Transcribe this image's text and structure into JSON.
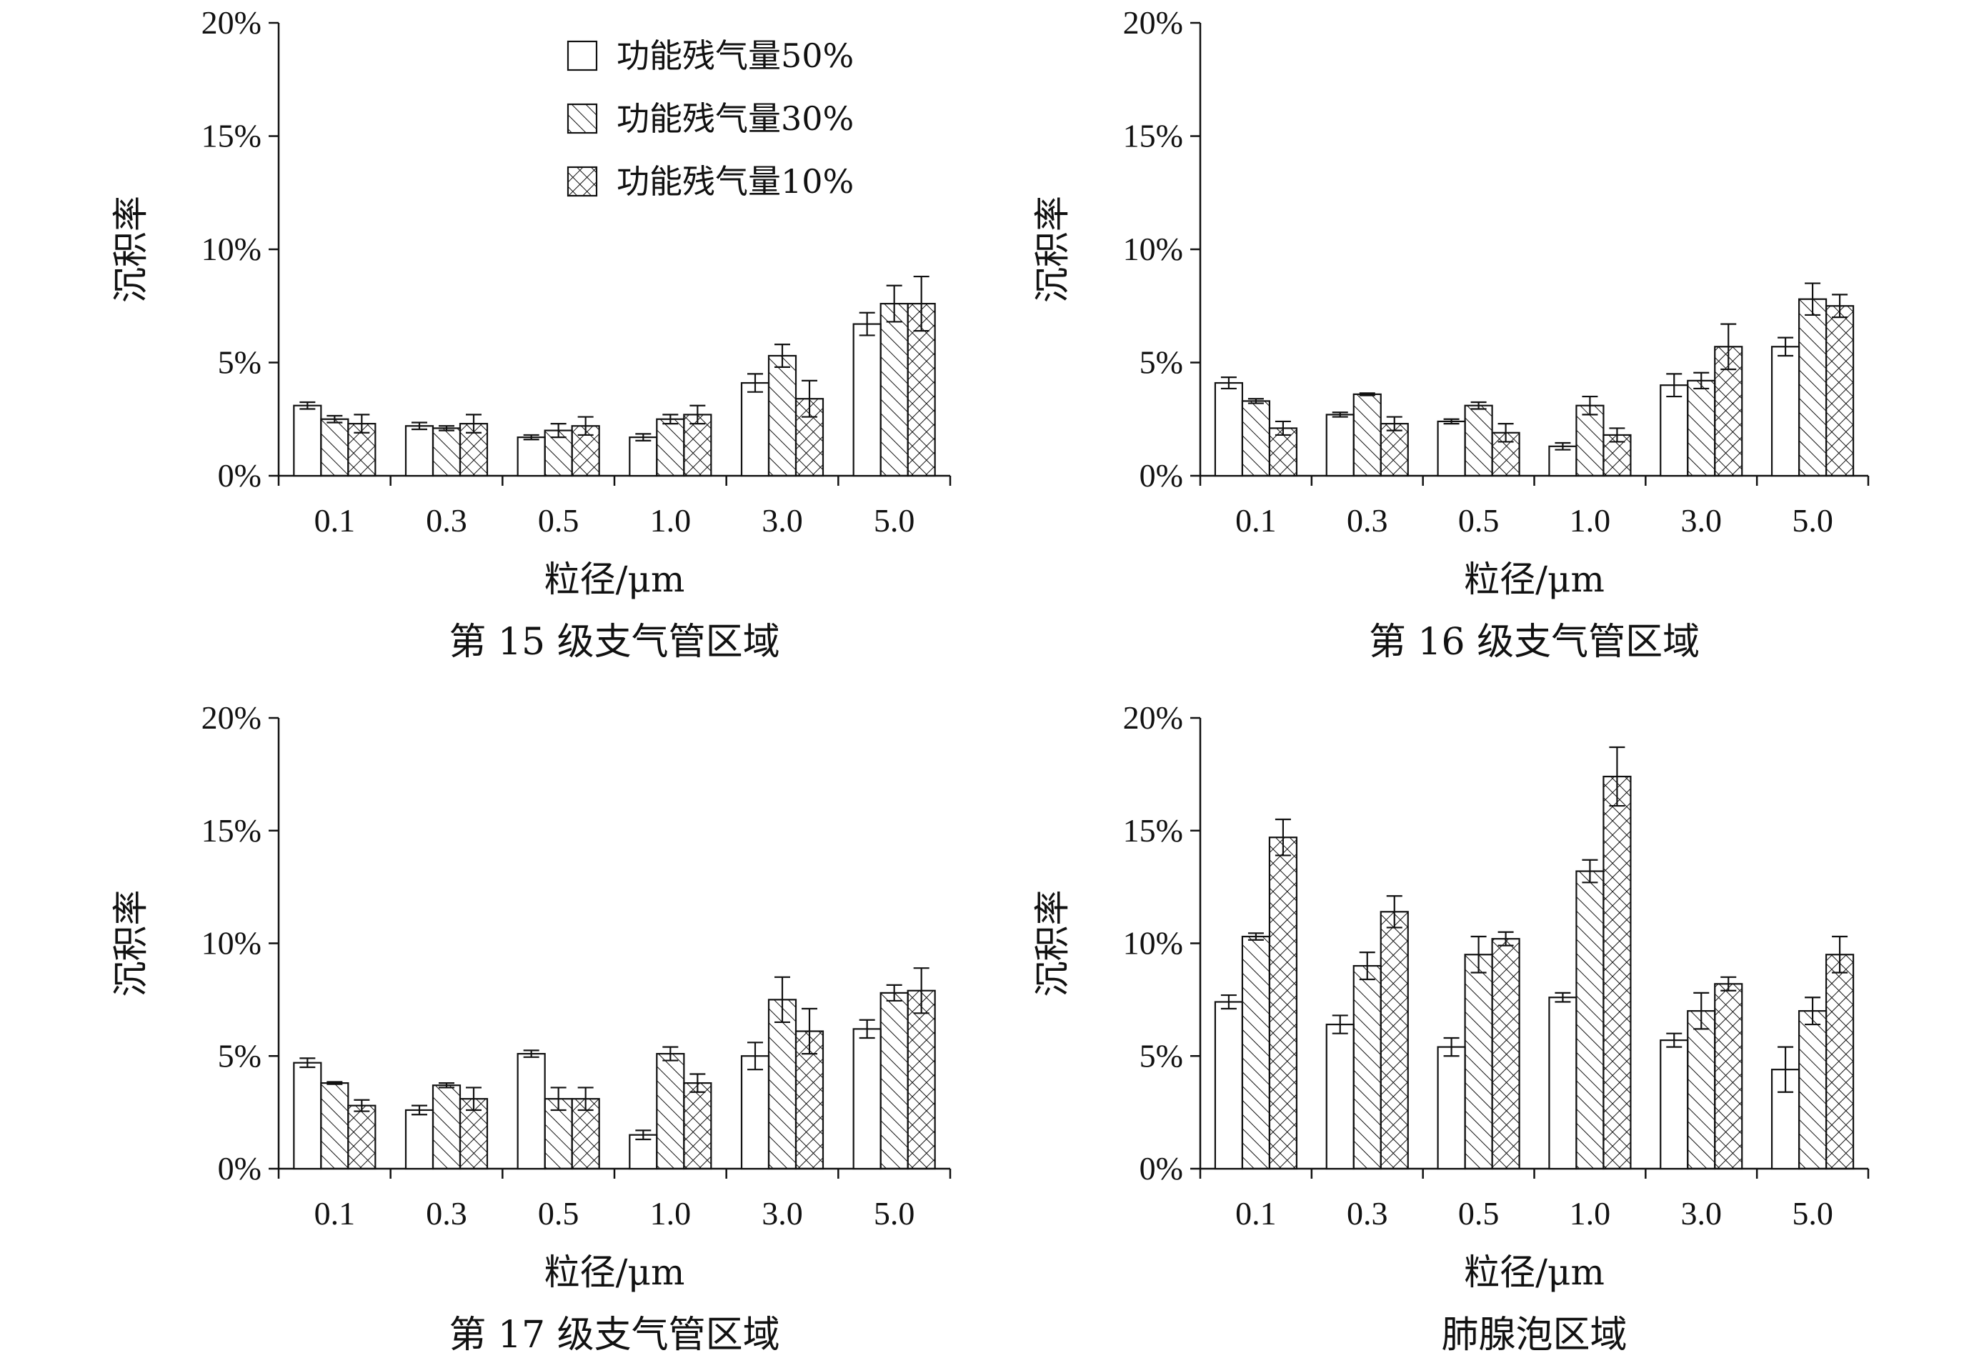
{
  "legend": [
    "功能残气量50%",
    "功能残气量30%",
    "功能残气量10%"
  ],
  "chart_data": [
    {
      "type": "bar",
      "caption": "第 15 级支气管区域",
      "xlabel": "粒径/μm",
      "ylabel": "沉积率",
      "ylim": [
        0,
        20
      ],
      "yticks": [
        "0%",
        "5%",
        "10%",
        "15%",
        "20%"
      ],
      "categories": [
        "0.1",
        "0.3",
        "0.5",
        "1.0",
        "3.0",
        "5.0"
      ],
      "legend_visible": true,
      "series": [
        {
          "name": "功能残气量50%",
          "values": [
            3.1,
            2.2,
            1.7,
            1.7,
            4.1,
            6.7
          ],
          "errors": [
            0.15,
            0.15,
            0.1,
            0.15,
            0.4,
            0.5
          ]
        },
        {
          "name": "功能残气量30%",
          "values": [
            2.5,
            2.1,
            2.0,
            2.5,
            5.3,
            7.6
          ],
          "errors": [
            0.15,
            0.1,
            0.3,
            0.2,
            0.5,
            0.8
          ]
        },
        {
          "name": "功能残气量10%",
          "values": [
            2.3,
            2.3,
            2.2,
            2.7,
            3.4,
            7.6
          ],
          "errors": [
            0.4,
            0.4,
            0.4,
            0.4,
            0.8,
            1.2
          ]
        }
      ]
    },
    {
      "type": "bar",
      "caption": "第 16 级支气管区域",
      "xlabel": "粒径/μm",
      "ylabel": "沉积率",
      "ylim": [
        0,
        20
      ],
      "yticks": [
        "0%",
        "5%",
        "10%",
        "15%",
        "20%"
      ],
      "categories": [
        "0.1",
        "0.3",
        "0.5",
        "1.0",
        "3.0",
        "5.0"
      ],
      "legend_visible": false,
      "series": [
        {
          "name": "功能残气量50%",
          "values": [
            4.1,
            2.7,
            2.4,
            1.3,
            4.0,
            5.7
          ],
          "errors": [
            0.25,
            0.1,
            0.1,
            0.15,
            0.5,
            0.4
          ]
        },
        {
          "name": "功能残气量30%",
          "values": [
            3.3,
            3.6,
            3.1,
            3.1,
            4.2,
            7.8
          ],
          "errors": [
            0.1,
            0.05,
            0.15,
            0.4,
            0.35,
            0.7
          ]
        },
        {
          "name": "功能残气量10%",
          "values": [
            2.1,
            2.3,
            1.9,
            1.8,
            5.7,
            7.5
          ],
          "errors": [
            0.3,
            0.3,
            0.4,
            0.3,
            1.0,
            0.5
          ]
        }
      ]
    },
    {
      "type": "bar",
      "caption": "第 17 级支气管区域",
      "xlabel": "粒径/μm",
      "ylabel": "沉积率",
      "ylim": [
        0,
        20
      ],
      "yticks": [
        "0%",
        "5%",
        "10%",
        "15%",
        "20%"
      ],
      "categories": [
        "0.1",
        "0.3",
        "0.5",
        "1.0",
        "3.0",
        "5.0"
      ],
      "legend_visible": false,
      "series": [
        {
          "name": "功能残气量50%",
          "values": [
            4.7,
            2.6,
            5.1,
            1.5,
            5.0,
            6.2
          ],
          "errors": [
            0.2,
            0.2,
            0.15,
            0.2,
            0.6,
            0.4
          ]
        },
        {
          "name": "功能残气量30%",
          "values": [
            3.8,
            3.7,
            3.1,
            5.1,
            7.5,
            7.8
          ],
          "errors": [
            0.05,
            0.1,
            0.5,
            0.3,
            1.0,
            0.35
          ]
        },
        {
          "name": "功能残气量10%",
          "values": [
            2.8,
            3.1,
            3.1,
            3.8,
            6.1,
            7.9
          ],
          "errors": [
            0.25,
            0.5,
            0.5,
            0.4,
            1.0,
            1.0
          ]
        }
      ]
    },
    {
      "type": "bar",
      "caption": "肺腺泡区域",
      "xlabel": "粒径/μm",
      "ylabel": "沉积率",
      "ylim": [
        0,
        20
      ],
      "yticks": [
        "0%",
        "5%",
        "10%",
        "15%",
        "20%"
      ],
      "categories": [
        "0.1",
        "0.3",
        "0.5",
        "1.0",
        "3.0",
        "5.0"
      ],
      "legend_visible": false,
      "series": [
        {
          "name": "功能残气量50%",
          "values": [
            7.4,
            6.4,
            5.4,
            7.6,
            5.7,
            4.4
          ],
          "errors": [
            0.3,
            0.4,
            0.4,
            0.2,
            0.3,
            1.0
          ]
        },
        {
          "name": "功能残气量30%",
          "values": [
            10.3,
            9.0,
            9.5,
            13.2,
            7.0,
            7.0
          ],
          "errors": [
            0.15,
            0.6,
            0.8,
            0.5,
            0.8,
            0.6
          ]
        },
        {
          "name": "功能残气量10%",
          "values": [
            14.7,
            11.4,
            10.2,
            17.4,
            8.2,
            9.5
          ],
          "errors": [
            0.8,
            0.7,
            0.3,
            1.3,
            0.3,
            0.8
          ]
        }
      ]
    }
  ]
}
